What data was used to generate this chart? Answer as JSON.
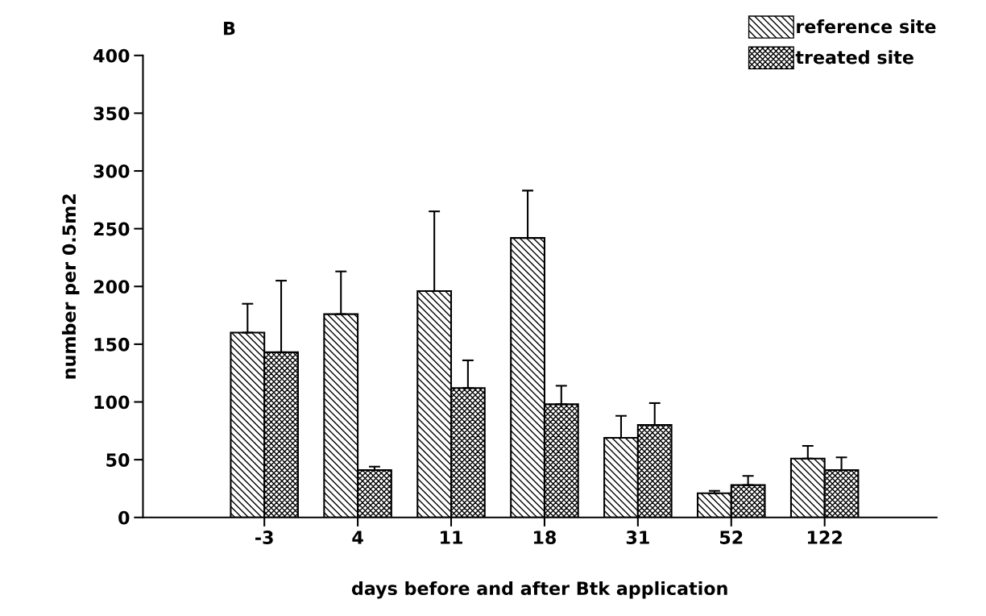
{
  "chart_data": {
    "type": "bar",
    "title": "B",
    "xlabel": "days before and after Btk application",
    "ylabel": "number per 0.5m2",
    "categories": [
      "-3",
      "4",
      "11",
      "18",
      "31",
      "52",
      "122"
    ],
    "series": [
      {
        "name": "reference site",
        "color": "#000000",
        "values": [
          160,
          176,
          196,
          242,
          69,
          21,
          51
        ],
        "errors": [
          [
            160,
            185
          ],
          [
            176,
            213
          ],
          [
            196,
            265
          ],
          [
            242,
            283
          ],
          [
            69,
            88
          ],
          [
            21,
            23
          ],
          [
            51,
            62
          ]
        ]
      },
      {
        "name": "treated site",
        "color": "#000000",
        "values": [
          143,
          41,
          112,
          98,
          80,
          28,
          41
        ],
        "errors": [
          [
            143,
            205
          ],
          [
            41,
            44
          ],
          [
            112,
            136
          ],
          [
            98,
            114
          ],
          [
            80,
            99
          ],
          [
            28,
            36
          ],
          [
            41,
            52
          ]
        ]
      }
    ],
    "ylim": [
      0,
      400
    ],
    "yticks": [
      0,
      50,
      100,
      150,
      200,
      250,
      300,
      350,
      400
    ],
    "grid": false,
    "legend": "top right"
  }
}
